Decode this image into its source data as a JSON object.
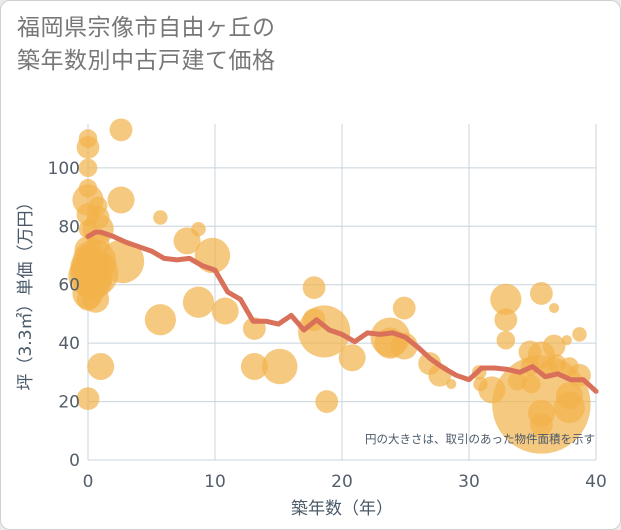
{
  "chart_data": {
    "type": "scatter",
    "title": [
      "福岡県宗像市自由ヶ丘の",
      "築年数別中古戸建て価格"
    ],
    "xlabel": "築年数（年）",
    "ylabel": "坪（3.3㎡）単価（万円）",
    "xlim": [
      0,
      40
    ],
    "ylim": [
      0,
      115
    ],
    "xticks": [
      "0",
      "10",
      "20",
      "30",
      "40"
    ],
    "yticks": [
      "0",
      "20",
      "40",
      "60",
      "80",
      "100"
    ],
    "xtick_values": [
      0,
      10,
      20,
      30,
      40
    ],
    "ytick_values": [
      0,
      20,
      40,
      60,
      80,
      100
    ],
    "grid": true,
    "note": "円の大きさは、取引のあった物件面積を示す",
    "colors": {
      "bubble": "#f2b24a",
      "line": "#d9705a",
      "grid": "#c8d4dc"
    },
    "series": [
      {
        "kind": "bubbles",
        "points": [
          {
            "x": 0,
            "y": 110,
            "s": 3
          },
          {
            "x": 0,
            "y": 107,
            "s": 4
          },
          {
            "x": 0,
            "y": 100,
            "s": 3
          },
          {
            "x": 0,
            "y": 93,
            "s": 3
          },
          {
            "x": 0,
            "y": 89,
            "s": 6
          },
          {
            "x": 0,
            "y": 84,
            "s": 4
          },
          {
            "x": 0,
            "y": 79,
            "s": 3
          },
          {
            "x": 0,
            "y": 72,
            "s": 5
          },
          {
            "x": 0,
            "y": 70,
            "s": 4
          },
          {
            "x": 0,
            "y": 66,
            "s": 7
          },
          {
            "x": 0,
            "y": 63,
            "s": 8
          },
          {
            "x": 0,
            "y": 60,
            "s": 5
          },
          {
            "x": 0,
            "y": 57,
            "s": 6
          },
          {
            "x": 0,
            "y": 55,
            "s": 4
          },
          {
            "x": 0,
            "y": 21,
            "s": 4
          },
          {
            "x": 0.5,
            "y": 68,
            "s": 9
          },
          {
            "x": 0.5,
            "y": 64,
            "s": 10
          },
          {
            "x": 0.5,
            "y": 61,
            "s": 7
          },
          {
            "x": 0.6,
            "y": 55,
            "s": 5
          },
          {
            "x": 0.8,
            "y": 87,
            "s": 3
          },
          {
            "x": 0.8,
            "y": 83,
            "s": 4
          },
          {
            "x": 0.8,
            "y": 79,
            "s": 6
          },
          {
            "x": 0.8,
            "y": 74,
            "s": 4
          },
          {
            "x": 0.8,
            "y": 66,
            "s": 3
          },
          {
            "x": 0.8,
            "y": 62,
            "s": 5
          },
          {
            "x": 1,
            "y": 32,
            "s": 5
          },
          {
            "x": 1,
            "y": 67,
            "s": 3
          },
          {
            "x": 2.6,
            "y": 113,
            "s": 4
          },
          {
            "x": 2.6,
            "y": 89,
            "s": 5
          },
          {
            "x": 2.7,
            "y": 68,
            "s": 9
          },
          {
            "x": 5.7,
            "y": 83,
            "s": 2
          },
          {
            "x": 5.7,
            "y": 48,
            "s": 6
          },
          {
            "x": 7.8,
            "y": 75,
            "s": 5
          },
          {
            "x": 8.7,
            "y": 79,
            "s": 2
          },
          {
            "x": 8.7,
            "y": 54,
            "s": 6
          },
          {
            "x": 9.8,
            "y": 70,
            "s": 7
          },
          {
            "x": 10.8,
            "y": 51,
            "s": 5
          },
          {
            "x": 13.1,
            "y": 45,
            "s": 4
          },
          {
            "x": 13.1,
            "y": 32,
            "s": 5
          },
          {
            "x": 15.1,
            "y": 32,
            "s": 7
          },
          {
            "x": 17.8,
            "y": 59,
            "s": 4
          },
          {
            "x": 17.8,
            "y": 48,
            "s": 4
          },
          {
            "x": 18.6,
            "y": 44,
            "s": 11
          },
          {
            "x": 18.8,
            "y": 20,
            "s": 4
          },
          {
            "x": 20.8,
            "y": 35,
            "s": 5
          },
          {
            "x": 23.8,
            "y": 42,
            "s": 8
          },
          {
            "x": 23.8,
            "y": 40,
            "s": 6
          },
          {
            "x": 24.9,
            "y": 52,
            "s": 4
          },
          {
            "x": 24.9,
            "y": 39,
            "s": 5
          },
          {
            "x": 26.9,
            "y": 33,
            "s": 4
          },
          {
            "x": 27.7,
            "y": 29,
            "s": 4
          },
          {
            "x": 28.6,
            "y": 26,
            "s": 1
          },
          {
            "x": 30.8,
            "y": 30,
            "s": 2
          },
          {
            "x": 30.9,
            "y": 26,
            "s": 2
          },
          {
            "x": 31.8,
            "y": 24,
            "s": 5
          },
          {
            "x": 32.9,
            "y": 55,
            "s": 6
          },
          {
            "x": 32.9,
            "y": 48,
            "s": 4
          },
          {
            "x": 32.9,
            "y": 41,
            "s": 3
          },
          {
            "x": 33.8,
            "y": 27,
            "s": 3
          },
          {
            "x": 34.8,
            "y": 37,
            "s": 4
          },
          {
            "x": 34.8,
            "y": 32,
            "s": 3
          },
          {
            "x": 34.9,
            "y": 26,
            "s": 3
          },
          {
            "x": 35.7,
            "y": 57,
            "s": 4
          },
          {
            "x": 35.7,
            "y": 36,
            "s": 5
          },
          {
            "x": 35.7,
            "y": 19,
            "s": 22
          },
          {
            "x": 35.7,
            "y": 16,
            "s": 5
          },
          {
            "x": 35.7,
            "y": 12,
            "s": 4
          },
          {
            "x": 36.3,
            "y": 31,
            "s": 3
          },
          {
            "x": 36.7,
            "y": 52,
            "s": 1
          },
          {
            "x": 36.7,
            "y": 39,
            "s": 4
          },
          {
            "x": 36.9,
            "y": 33,
            "s": 3
          },
          {
            "x": 37.7,
            "y": 41,
            "s": 1
          },
          {
            "x": 37.9,
            "y": 32,
            "s": 3
          },
          {
            "x": 37.9,
            "y": 22,
            "s": 5
          },
          {
            "x": 37.9,
            "y": 18,
            "s": 6
          },
          {
            "x": 38.7,
            "y": 43,
            "s": 2
          },
          {
            "x": 38.7,
            "y": 29,
            "s": 4
          }
        ]
      },
      {
        "kind": "line",
        "x": [
          0,
          0.6,
          1,
          2,
          3,
          4,
          5,
          6,
          7,
          8,
          9,
          10,
          11,
          12,
          13,
          14,
          15,
          16,
          17,
          18,
          19,
          20,
          21,
          22,
          23,
          24,
          25,
          26,
          27,
          28,
          29,
          30,
          31,
          32,
          33,
          34,
          35,
          36,
          37,
          38,
          39,
          40
        ],
        "y": [
          76.5,
          78,
          78,
          76.5,
          74.5,
          73,
          71.5,
          69,
          68.5,
          69,
          66.5,
          65,
          57.5,
          55,
          47.5,
          47.5,
          46.5,
          49.5,
          44.5,
          48,
          44.5,
          43,
          40.5,
          43.5,
          43,
          43.5,
          42,
          38.5,
          34.5,
          31.5,
          29,
          27.5,
          31.5,
          31.5,
          31,
          30,
          32,
          28.5,
          29.5,
          27.5,
          27.5,
          23.5
        ]
      }
    ]
  }
}
